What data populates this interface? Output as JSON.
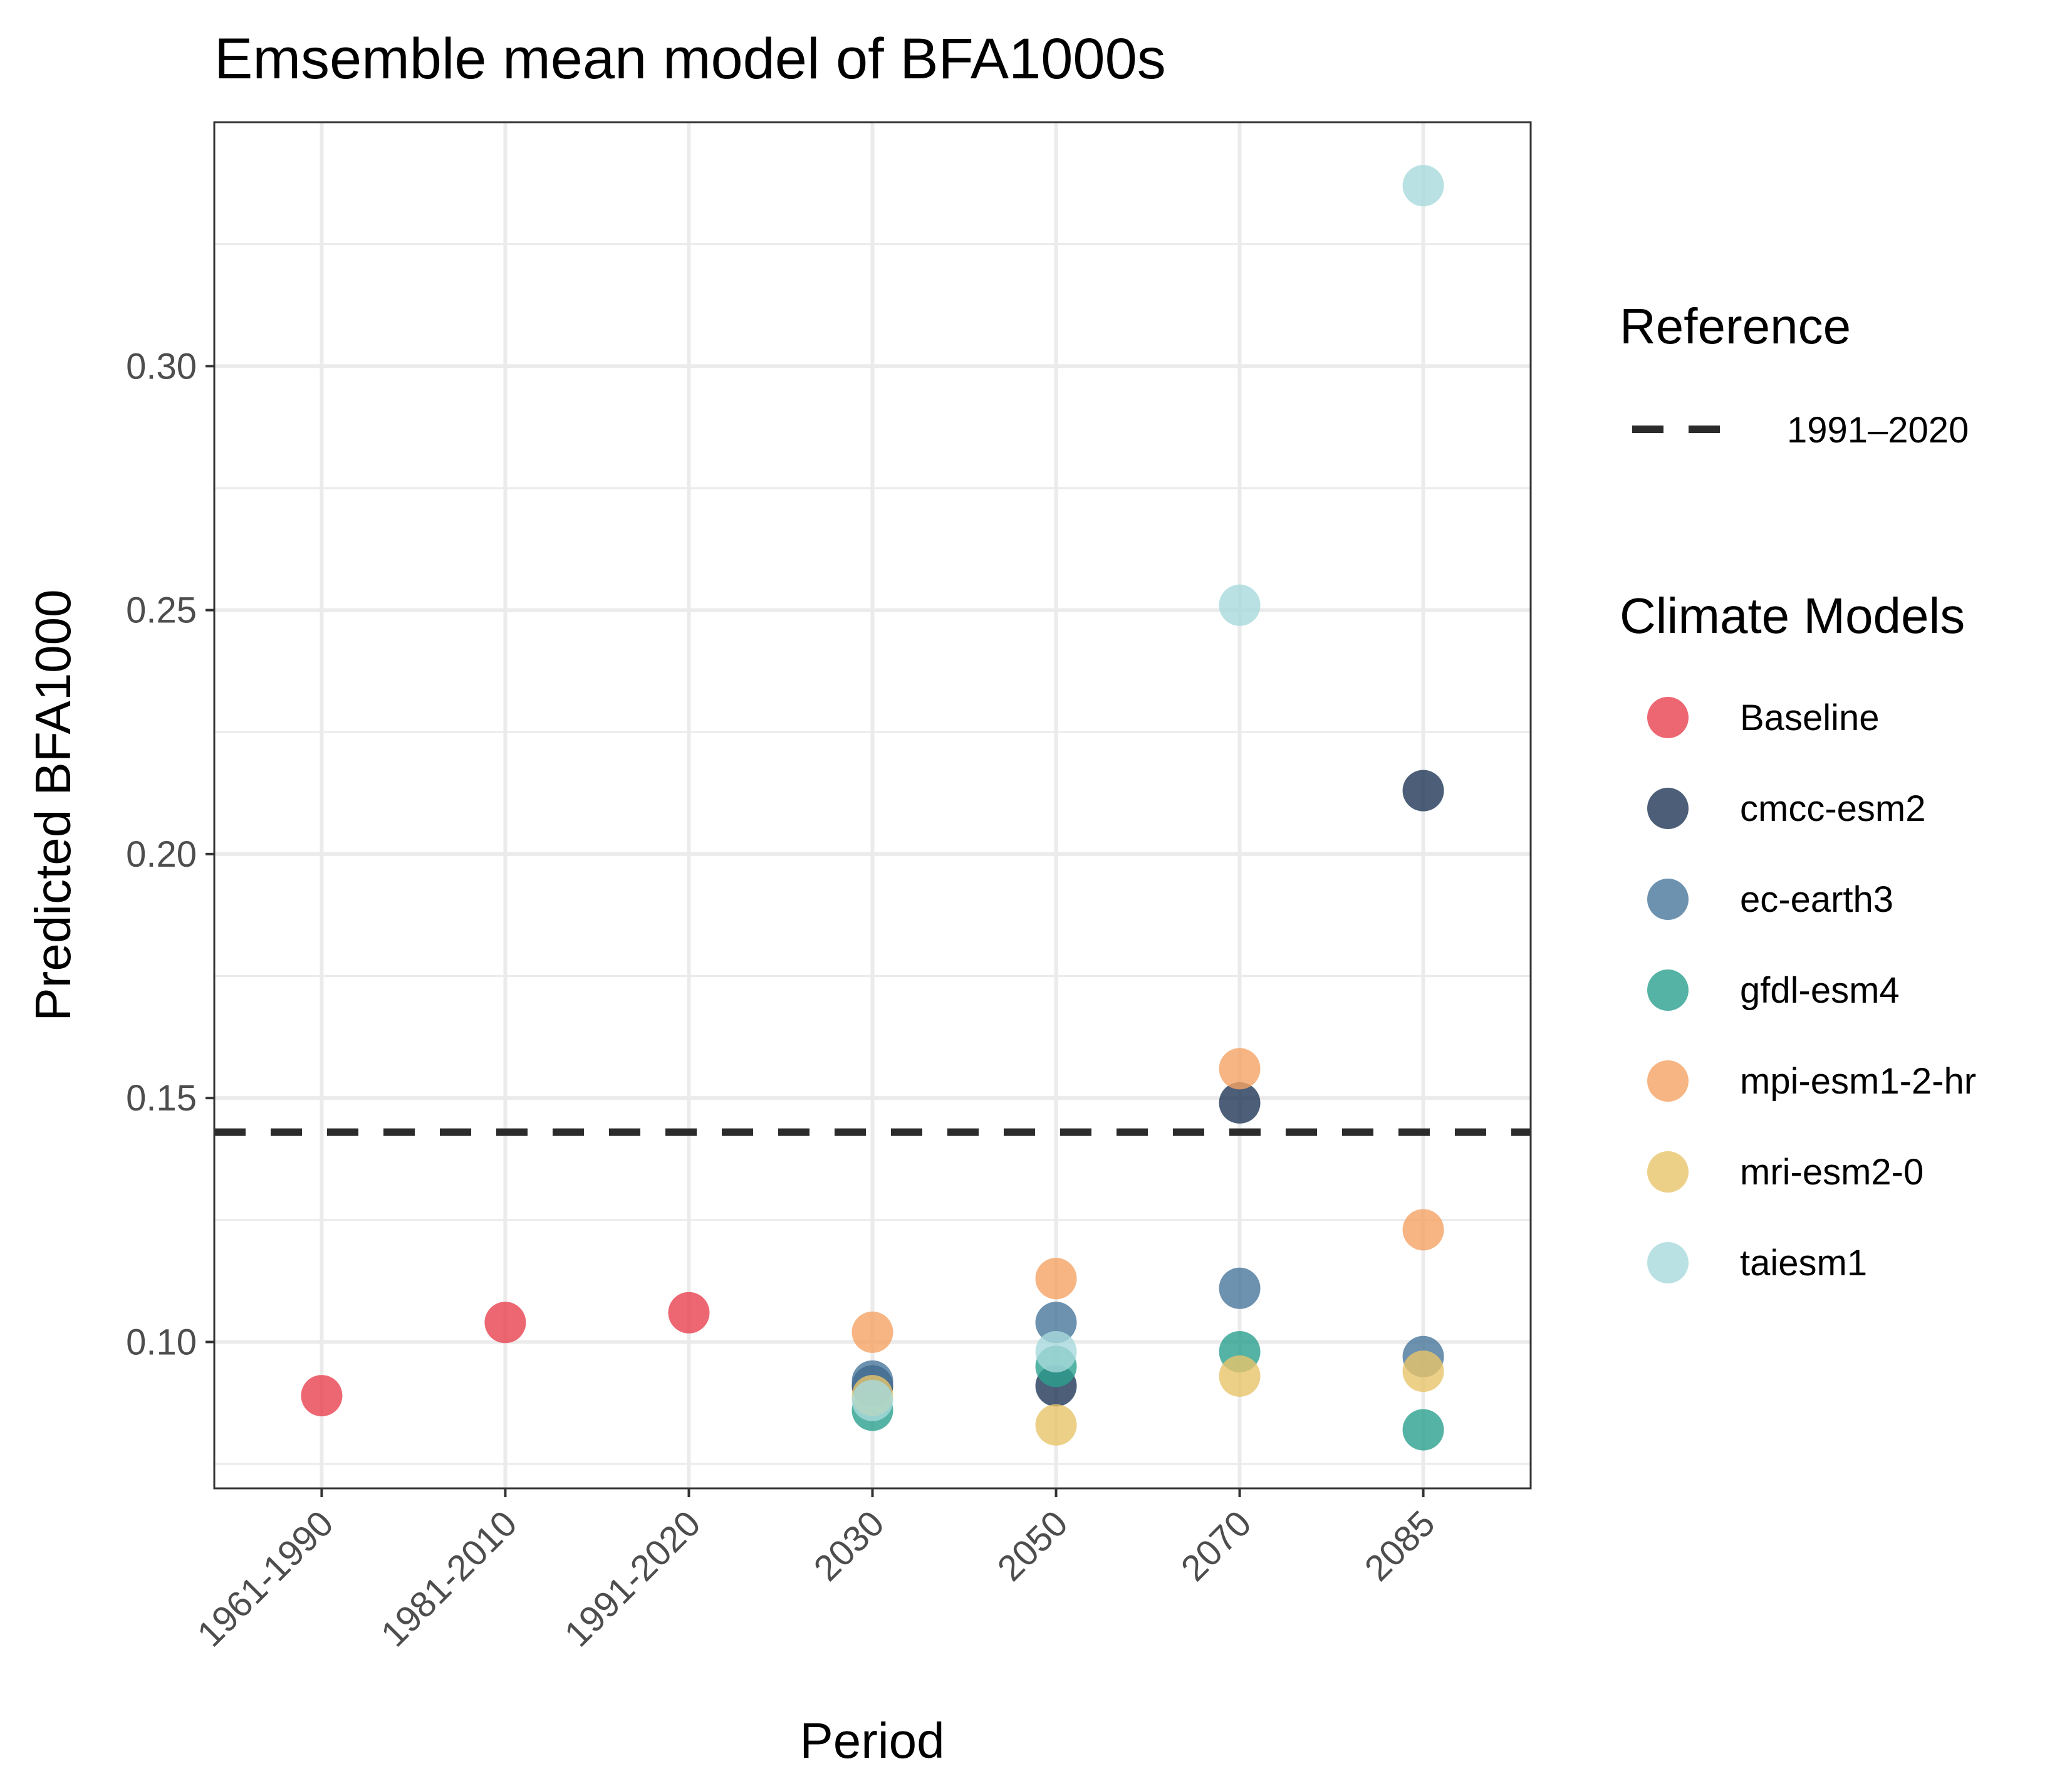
{
  "chart_data": {
    "type": "scatter",
    "title": "Emsemble mean model of BFA1000s",
    "xlabel": "Period",
    "ylabel": "Predicted BFA1000",
    "categories": [
      "1961-1990",
      "1981-2010",
      "1991-2020",
      "2030",
      "2050",
      "2070",
      "2085"
    ],
    "ylim": [
      0.07,
      0.35
    ],
    "yticks": [
      0.1,
      0.15,
      0.2,
      0.25,
      0.3
    ],
    "ytick_labels": [
      "0.10",
      "0.15",
      "0.20",
      "0.25",
      "0.30"
    ],
    "grid": true,
    "legend_position": "right",
    "reference": {
      "legend_title": "Reference",
      "label": "1991–2020",
      "value": 0.143,
      "style": "dashed",
      "color": "#2b2b2b"
    },
    "series_legend_title": "Climate Models",
    "series": [
      {
        "name": "Baseline",
        "color": "#e8414f",
        "points": [
          [
            "1961-1990",
            0.089
          ],
          [
            "1981-2010",
            0.104
          ],
          [
            "1991-2020",
            0.106
          ]
        ]
      },
      {
        "name": "cmcc-esm2",
        "color": "#1f3656",
        "points": [
          [
            "2030",
            0.091
          ],
          [
            "2050",
            0.091
          ],
          [
            "2070",
            0.149
          ],
          [
            "2085",
            0.213
          ]
        ]
      },
      {
        "name": "ec-earth3",
        "color": "#48779c",
        "points": [
          [
            "2030",
            0.092
          ],
          [
            "2050",
            0.104
          ],
          [
            "2070",
            0.111
          ],
          [
            "2085",
            0.097
          ]
        ]
      },
      {
        "name": "gfdl-esm4",
        "color": "#2aa08e",
        "points": [
          [
            "2030",
            0.086
          ],
          [
            "2050",
            0.095
          ],
          [
            "2070",
            0.098
          ],
          [
            "2085",
            0.082
          ]
        ]
      },
      {
        "name": "mpi-esm1-2-hr",
        "color": "#f4a264",
        "points": [
          [
            "2030",
            0.102
          ],
          [
            "2050",
            0.113
          ],
          [
            "2070",
            0.156
          ],
          [
            "2085",
            0.123
          ]
        ]
      },
      {
        "name": "mri-esm2-0",
        "color": "#e9c46a",
        "points": [
          [
            "2030",
            0.089
          ],
          [
            "2050",
            0.083
          ],
          [
            "2070",
            0.093
          ],
          [
            "2085",
            0.094
          ]
        ]
      },
      {
        "name": "taiesm1",
        "color": "#a8dadc",
        "points": [
          [
            "2030",
            0.088
          ],
          [
            "2050",
            0.098
          ],
          [
            "2070",
            0.251
          ],
          [
            "2085",
            0.337
          ]
        ]
      }
    ]
  }
}
